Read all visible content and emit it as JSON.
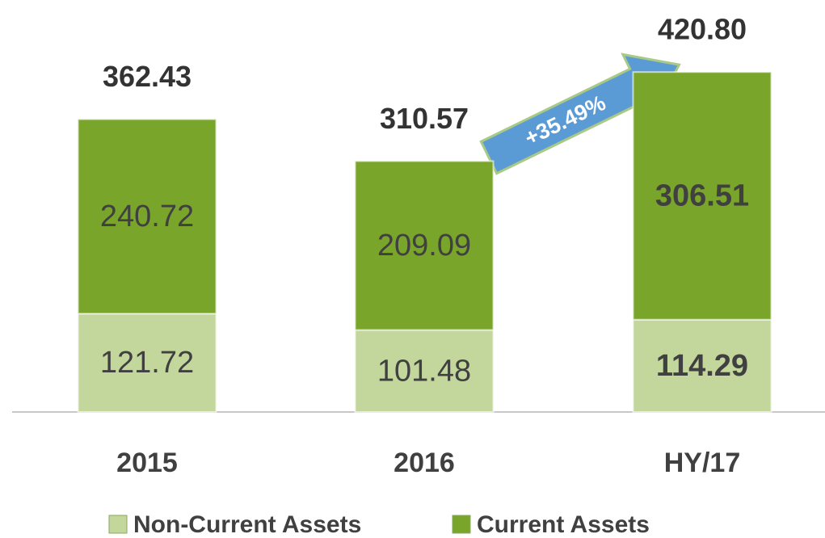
{
  "chart_data": {
    "type": "stacked_bar",
    "categories": [
      "2015",
      "2016",
      "HY/17"
    ],
    "series": [
      {
        "name": "Non-Current Assets",
        "color": "#c3d69b",
        "values": [
          121.72,
          101.48,
          114.29
        ]
      },
      {
        "name": "Current Assets",
        "color": "#79a52b",
        "values": [
          240.72,
          209.09,
          306.51
        ]
      }
    ],
    "totals": [
      362.43,
      310.57,
      420.8
    ],
    "total_labels": [
      "362.43",
      "310.57",
      "420.80"
    ],
    "annotation": "+35.49%"
  }
}
